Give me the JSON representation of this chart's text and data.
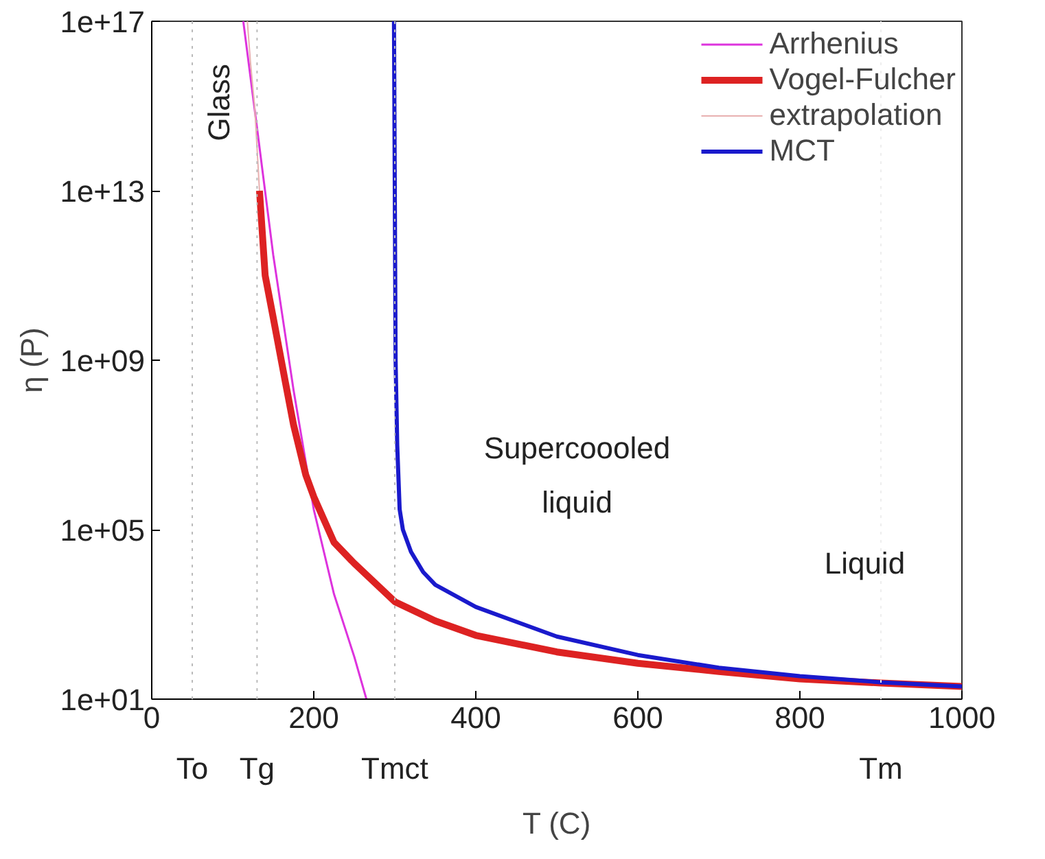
{
  "chart_data": {
    "type": "line",
    "xlabel": "T (C)",
    "ylabel": "η (P)",
    "log": "y",
    "xlim": [
      0,
      1000
    ],
    "xticks": [
      0,
      200,
      400,
      600,
      800,
      1000
    ],
    "ylim": [
      10,
      1e+17
    ],
    "yticks": [
      {
        "value": 10,
        "label": "1e+01"
      },
      {
        "value": 100000.0,
        "label": "1e+05"
      },
      {
        "value": 1000000000.0,
        "label": "1e+09"
      },
      {
        "value": 10000000000000.0,
        "label": "1e+13"
      },
      {
        "value": 1e+17,
        "label": "1e+17"
      }
    ],
    "grid": false,
    "legend": "top right",
    "line_style": "solid",
    "marker": "none",
    "ref_lines": [
      {
        "axis": "x",
        "value": 50,
        "label": "To",
        "color": "#bbbbbb",
        "line_style": "dotted"
      },
      {
        "axis": "x",
        "value": 130,
        "label": "Tg",
        "color": "#bbbbbb",
        "line_style": "dotted"
      },
      {
        "axis": "x",
        "value": 300,
        "label": "Tmct",
        "color": "#bbbbbb",
        "line_style": "dotted"
      },
      {
        "axis": "x",
        "value": 900,
        "label": "Tm",
        "color": "#eeeeee",
        "line_style": "dotted"
      }
    ],
    "series": [
      {
        "name": "Arrhenius",
        "color": "#dd33dd",
        "x": [
          113,
          130,
          150,
          175,
          200,
          225,
          250,
          265
        ],
        "values": [
          1e+17,
          300000000000000.0,
          300000000000.0,
          200000000.0,
          300000.0,
          3000.0,
          100,
          10
        ]
      },
      {
        "name": "Vogel-Fulcher",
        "color": "#dd2222",
        "x": [
          133,
          140,
          150,
          165,
          175,
          190,
          200,
          225,
          250,
          300,
          350,
          400,
          500,
          600,
          700,
          800,
          900,
          1000
        ],
        "values": [
          10000000000000.0,
          100000000000.0,
          10000000000.0,
          300000000.0,
          30000000.0,
          2000000.0,
          600000.0,
          50000.0,
          16000.0,
          2000.0,
          700,
          320,
          130,
          70,
          45,
          30,
          24,
          20
        ]
      },
      {
        "name": "extrapolation",
        "color": "#e8b0b0",
        "x": [
          118,
          122,
          127,
          133
        ],
        "values": [
          1e+17,
          1e+16,
          1000000000000000.0,
          10000000000000.0
        ]
      },
      {
        "name": "MCT",
        "color": "#1a1acc",
        "x": [
          299,
          300,
          301,
          303,
          306,
          310,
          320,
          335,
          350,
          400,
          500,
          600,
          700,
          800,
          900,
          1000
        ],
        "values": [
          1e+17,
          10000000000000.0,
          1000000000.0,
          10000000.0,
          300000.0,
          100000.0,
          30000.0,
          10000.0,
          5000.0,
          1500.0,
          300,
          110,
          55,
          35,
          25,
          20
        ]
      }
    ],
    "annotations": [
      "Glass",
      "Supercoooled",
      "liquid",
      "Liquid"
    ]
  }
}
